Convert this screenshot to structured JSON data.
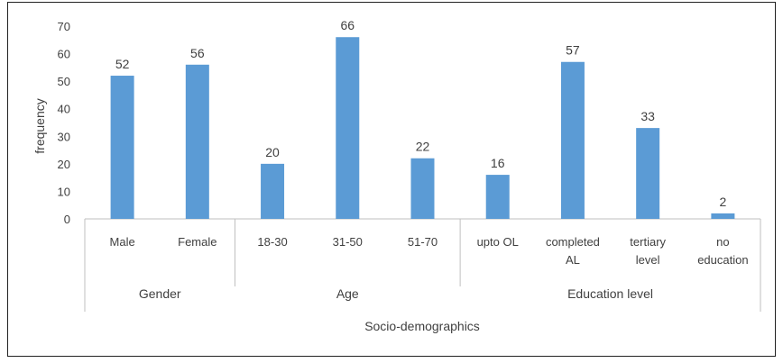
{
  "chart_data": {
    "type": "bar",
    "ylabel": "frequency",
    "xlabel": "Socio-demographics",
    "ylim": [
      0,
      70
    ],
    "yticks": [
      0,
      10,
      20,
      30,
      40,
      50,
      60,
      70
    ],
    "grid": false,
    "legend": "none",
    "bar_color": "#5b9bd5",
    "groups": [
      {
        "name": "Gender",
        "categories": [
          [
            "Male"
          ],
          [
            "Female"
          ]
        ],
        "values": [
          52,
          56
        ]
      },
      {
        "name": "Age",
        "categories": [
          [
            "18-30"
          ],
          [
            "31-50"
          ],
          [
            "51-70"
          ]
        ],
        "values": [
          20,
          66,
          22
        ]
      },
      {
        "name": "Education level",
        "categories": [
          [
            "upto OL"
          ],
          [
            "completed",
            "AL"
          ],
          [
            "tertiary",
            "level"
          ],
          [
            "no",
            "education"
          ]
        ],
        "values": [
          16,
          57,
          33,
          2
        ]
      }
    ]
  }
}
